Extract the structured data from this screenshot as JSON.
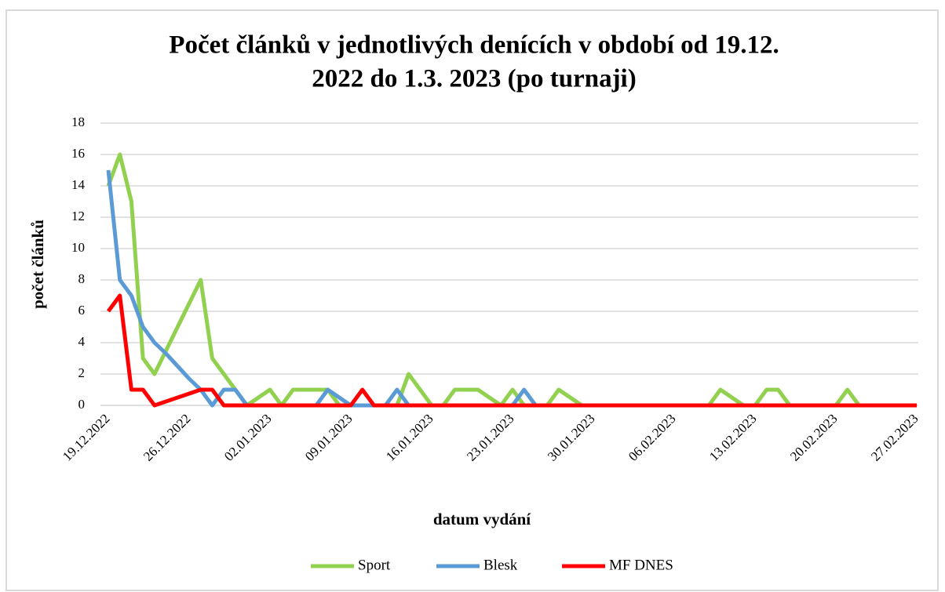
{
  "chart_data": {
    "type": "line",
    "title": [
      "Počet článků v jednotlivých denících v období od 19.12.",
      "2022 do 1.3. 2023 (po turnaji)"
    ],
    "x_label": "datum vydání",
    "y_label": "počet článků",
    "categories": [
      "19.12.2022",
      null,
      null,
      null,
      null,
      null,
      null,
      "26.12.2022",
      null,
      null,
      null,
      null,
      null,
      null,
      "02.01.2023",
      null,
      null,
      null,
      null,
      null,
      null,
      "09.01.2023",
      null,
      null,
      null,
      null,
      null,
      null,
      "16.01.2023",
      null,
      null,
      null,
      null,
      null,
      null,
      "23.01.2023",
      null,
      null,
      null,
      null,
      null,
      null,
      "30.01.2023",
      null,
      null,
      null,
      null,
      null,
      null,
      "06.02.2023",
      null,
      null,
      null,
      null,
      null,
      null,
      "13.02.2023",
      null,
      null,
      null,
      null,
      null,
      null,
      "20.02.2023",
      null,
      null,
      null,
      null,
      null,
      null,
      "27.02.2023"
    ],
    "series": [
      {
        "name": "Sport",
        "color": "#92d050",
        "values": [
          14,
          16,
          13,
          3,
          2,
          3.5,
          5,
          6.5,
          8,
          3,
          2,
          1,
          0,
          0.5,
          1,
          0,
          1,
          1,
          1,
          1,
          0,
          0,
          0,
          0,
          0,
          0,
          2,
          1,
          0,
          0,
          1,
          1,
          1,
          0.5,
          0,
          1,
          0,
          0,
          0,
          1,
          0.5,
          0,
          0,
          0,
          0,
          0,
          0,
          0,
          0,
          0,
          0,
          0,
          0,
          1,
          0.5,
          0,
          0,
          1,
          1,
          0,
          0,
          0,
          0,
          0,
          1,
          0,
          0,
          0,
          0,
          0,
          0
        ]
      },
      {
        "name": "Blesk",
        "color": "#5b9bd5",
        "values": [
          15,
          8,
          7,
          5,
          4,
          3.3,
          2.5,
          1.7,
          1,
          0,
          1,
          1,
          0,
          0,
          0,
          0,
          0,
          0,
          0,
          1,
          0.5,
          0,
          0,
          0,
          0,
          1,
          0,
          0,
          0,
          0,
          0,
          0,
          0,
          0,
          0,
          0,
          1,
          0,
          0,
          0,
          0,
          0,
          0,
          0,
          0,
          0,
          0,
          0,
          0,
          0,
          0,
          0,
          0,
          0,
          0,
          0,
          0,
          0,
          0,
          0,
          0,
          0,
          0,
          0,
          0,
          0,
          0,
          0,
          0,
          0,
          0
        ]
      },
      {
        "name": "MF DNES",
        "color": "#ff0000",
        "values": [
          6,
          7,
          1,
          1,
          0,
          0.25,
          0.5,
          0.75,
          1,
          1,
          0,
          0,
          0,
          0,
          0,
          0,
          0,
          0,
          0,
          0,
          0,
          0,
          1,
          0,
          0,
          0,
          0,
          0,
          0,
          0,
          0,
          0,
          0,
          0,
          0,
          0,
          0,
          0,
          0,
          0,
          0,
          0,
          0,
          0,
          0,
          0,
          0,
          0,
          0,
          0,
          0,
          0,
          0,
          0,
          0,
          0,
          0,
          0,
          0,
          0,
          0,
          0,
          0,
          0,
          0,
          0,
          0,
          0,
          0,
          0,
          0
        ]
      }
    ],
    "ylim": [
      0,
      18
    ],
    "yticks": [
      0,
      2,
      4,
      6,
      8,
      10,
      12,
      14,
      16,
      18
    ],
    "grid": true,
    "legend": "bottom"
  }
}
